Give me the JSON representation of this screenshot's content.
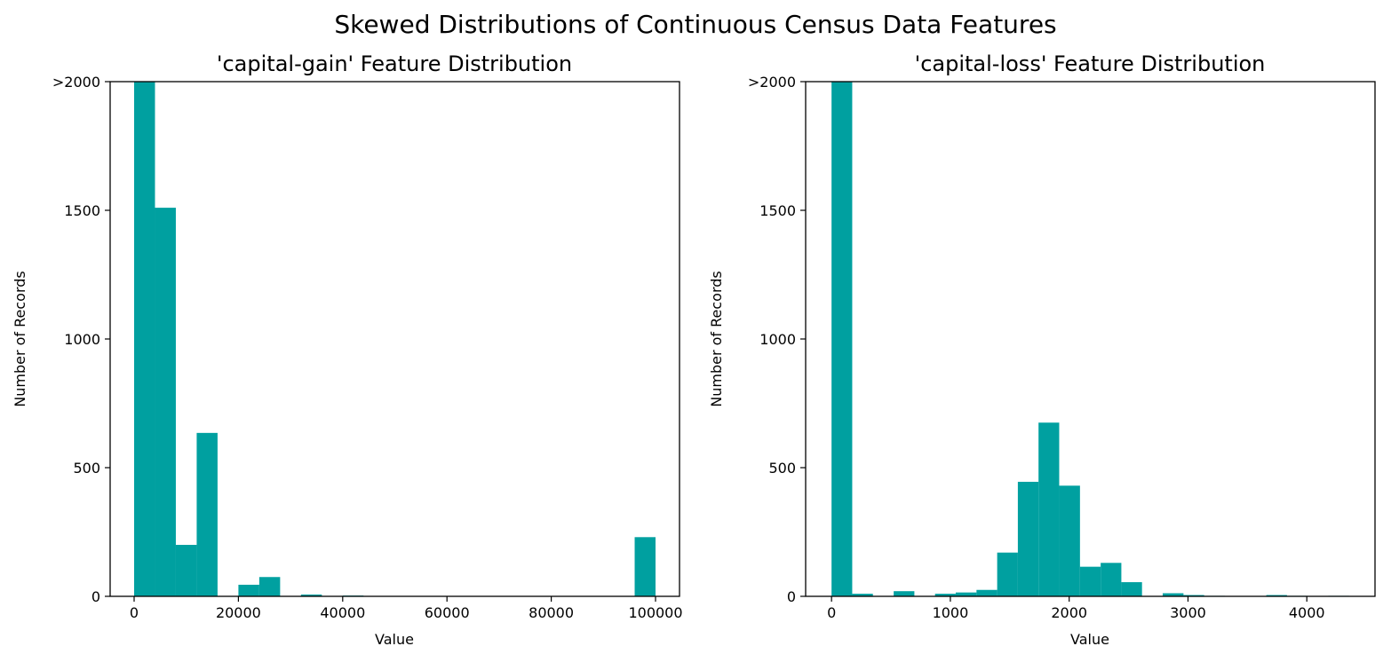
{
  "figure": {
    "suptitle": "Skewed Distributions of Continuous Census Data Features"
  },
  "chart_data": [
    {
      "type": "bar",
      "title": "'capital-gain' Feature Distribution",
      "xlabel": "Value",
      "ylabel": "Number of Records",
      "color": "#00A0A0",
      "xlim": [
        -4600,
        104600
      ],
      "ylim": [
        0,
        2000
      ],
      "xticks": [
        0,
        20000,
        40000,
        60000,
        80000,
        100000
      ],
      "xtick_labels": [
        "0",
        "20000",
        "40000",
        "60000",
        "80000",
        "100000"
      ],
      "yticks": [
        0,
        500,
        1000,
        1500,
        2000
      ],
      "ytick_labels": [
        "0",
        "500",
        "1000",
        "1500",
        ">2000"
      ],
      "bin_edges": [
        0,
        4000,
        8000,
        12000,
        16000,
        20000,
        24000,
        28000,
        32000,
        36000,
        40000,
        44000,
        48000,
        52000,
        56000,
        60000,
        64000,
        68000,
        72000,
        76000,
        80000,
        84000,
        88000,
        92000,
        96000,
        100000
      ],
      "values": [
        2000,
        1510,
        200,
        635,
        0,
        45,
        75,
        0,
        7,
        0,
        3,
        0,
        0,
        0,
        0,
        0,
        0,
        0,
        0,
        0,
        0,
        0,
        0,
        0,
        230
      ]
    },
    {
      "type": "bar",
      "title": "'capital-loss' Feature Distribution",
      "xlabel": "Value",
      "ylabel": "Number of Records",
      "color": "#00A0A0",
      "xlim": [
        -218,
        4574
      ],
      "ylim": [
        0,
        2000
      ],
      "xticks": [
        0,
        1000,
        2000,
        3000,
        4000
      ],
      "xtick_labels": [
        "0",
        "1000",
        "2000",
        "3000",
        "4000"
      ],
      "yticks": [
        0,
        500,
        1000,
        1500,
        2000
      ],
      "ytick_labels": [
        "0",
        "500",
        "1000",
        "1500",
        ">2000"
      ],
      "bin_edges": [
        0,
        174,
        348,
        523,
        697,
        871,
        1045,
        1220,
        1394,
        1568,
        1742,
        1916,
        2091,
        2265,
        2439,
        2613,
        2787,
        2962,
        3136,
        3310,
        3484,
        3659,
        3833,
        4007,
        4181,
        4356
      ],
      "values": [
        2000,
        10,
        0,
        20,
        0,
        10,
        15,
        25,
        170,
        445,
        675,
        430,
        115,
        130,
        55,
        0,
        12,
        5,
        2,
        0,
        0,
        5,
        2,
        0,
        2
      ]
    }
  ]
}
